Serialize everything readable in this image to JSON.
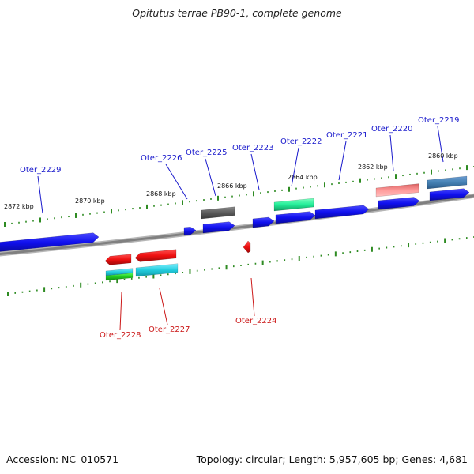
{
  "title": "Opitutus terrae PB90-1, complete genome",
  "accession_text": "Accession: NC_010571",
  "summary_text": "Topology: circular; Length: 5,957,605 bp; Genes: 4,681",
  "colors": {
    "forward_gene": "#1010ee",
    "reverse_gene": "#ee1010",
    "forward_label": "#1a1acc",
    "reverse_label": "#cc1a1a",
    "tick": "#2e8b22",
    "backbone": "#808080"
  },
  "scale_labels": [
    "2872 kbp",
    "2870 kbp",
    "2868 kbp",
    "2866 kbp",
    "2864 kbp",
    "2862 kbp",
    "2860 kbp"
  ],
  "forward_genes": [
    "Oter_2229",
    "Oter_2226",
    "Oter_2225",
    "Oter_2223",
    "Oter_2222",
    "Oter_2221",
    "Oter_2220",
    "Oter_2219"
  ],
  "reverse_genes": [
    "Oter_2228",
    "Oter_2227",
    "Oter_2224"
  ]
}
